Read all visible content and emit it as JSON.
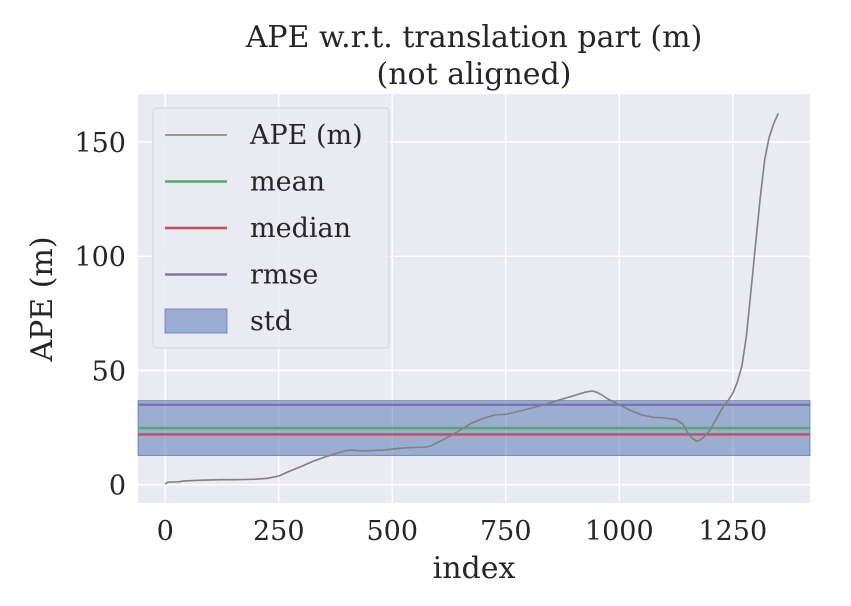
{
  "chart_data": {
    "type": "line",
    "title": "APE w.r.t. translation part (m)",
    "subtitle": "(not aligned)",
    "xlabel": "index",
    "ylabel": "APE (m)",
    "xlim": [
      -60,
      1420
    ],
    "ylim": [
      -8,
      171
    ],
    "x_ticks": [
      0,
      250,
      500,
      750,
      1000,
      1250
    ],
    "y_ticks": [
      0,
      50,
      100,
      150
    ],
    "grid": true,
    "legend_position": "top-left",
    "series": [
      {
        "name": "APE (m)",
        "color": "#808080",
        "x": [
          0,
          5,
          10,
          20,
          30,
          40,
          60,
          80,
          100,
          125,
          150,
          175,
          200,
          225,
          250,
          275,
          300,
          325,
          350,
          375,
          400,
          410,
          420,
          440,
          460,
          480,
          500,
          525,
          550,
          575,
          585,
          600,
          625,
          650,
          675,
          700,
          725,
          750,
          775,
          800,
          825,
          850,
          875,
          900,
          925,
          940,
          950,
          960,
          975,
          1000,
          1025,
          1050,
          1075,
          1100,
          1125,
          1140,
          1150,
          1160,
          1170,
          1180,
          1190,
          1200,
          1210,
          1220,
          1230,
          1240,
          1250,
          1260,
          1270,
          1280,
          1290,
          1300,
          1310,
          1320,
          1330,
          1340,
          1350
        ],
        "values": [
          0.3,
          1.0,
          1.2,
          1.2,
          1.3,
          1.6,
          1.8,
          2.0,
          2.1,
          2.2,
          2.2,
          2.3,
          2.4,
          2.8,
          3.8,
          6.0,
          8.0,
          10.2,
          12.0,
          13.6,
          15.0,
          15.2,
          15.0,
          14.8,
          15.0,
          15.1,
          15.6,
          16.1,
          16.3,
          16.5,
          17.0,
          18.5,
          21.0,
          24.0,
          27.0,
          29.0,
          30.5,
          30.8,
          32.0,
          33.2,
          34.5,
          36.0,
          37.5,
          39.0,
          40.5,
          41.0,
          40.5,
          39.5,
          37.5,
          35.0,
          32.5,
          30.5,
          29.5,
          29.2,
          28.5,
          26.5,
          23.0,
          20.5,
          19.0,
          19.8,
          21.5,
          24.0,
          27.5,
          31.0,
          34.5,
          37.0,
          40.0,
          45.0,
          52.0,
          65.0,
          85.0,
          105.0,
          125.0,
          142.0,
          152.0,
          158.0,
          162.5
        ]
      },
      {
        "name": "mean",
        "color": "#55a868",
        "value": 24.8
      },
      {
        "name": "median",
        "color": "#c44e52",
        "value": 22.0
      },
      {
        "name": "rmse",
        "color": "#8172b2",
        "value": 35.0
      },
      {
        "name": "std",
        "color": "#4c72b0",
        "range": [
          12.8,
          36.8
        ]
      }
    ]
  }
}
